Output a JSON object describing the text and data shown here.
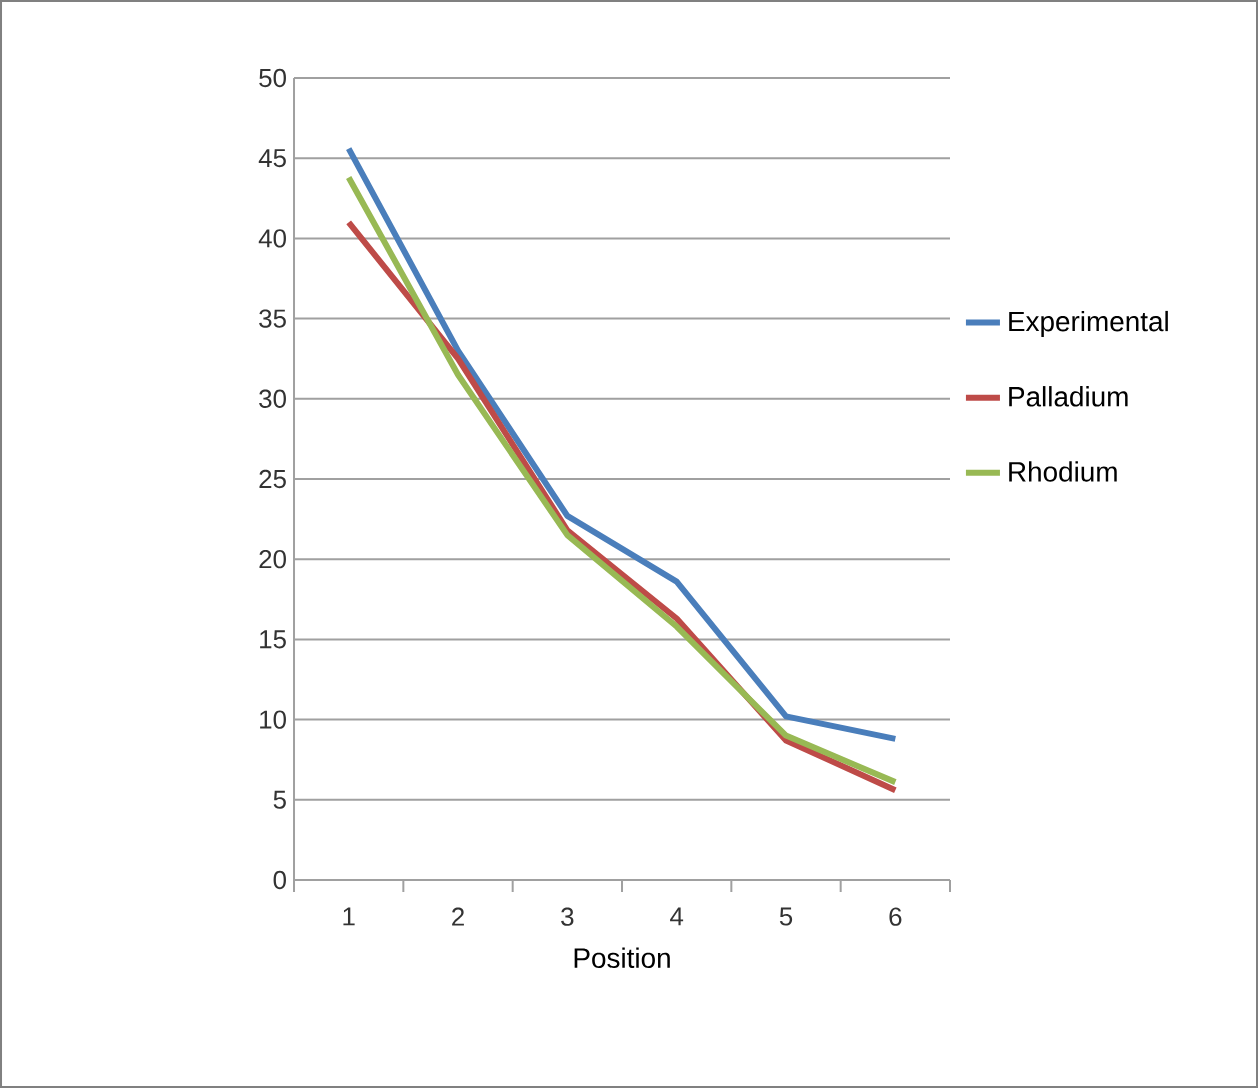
{
  "chart_data": {
    "type": "line",
    "xlabel": "Position",
    "categories": [
      "1",
      "2",
      "3",
      "4",
      "5",
      "6"
    ],
    "series": [
      {
        "name": "Experimental",
        "color": "#4a7ebb",
        "values": [
          45.6,
          33,
          22.7,
          18.6,
          10.2,
          8.8
        ]
      },
      {
        "name": "Palladium",
        "color": "#be4b48",
        "values": [
          41,
          32.5,
          21.8,
          16.3,
          8.7,
          5.6
        ]
      },
      {
        "name": "Rhodium",
        "color": "#98b954",
        "values": [
          43.8,
          31.5,
          21.5,
          15.8,
          9.0,
          6.1
        ]
      }
    ],
    "ylim": [
      0,
      50
    ],
    "yticks": [
      0,
      5,
      10,
      15,
      20,
      25,
      30,
      35,
      40,
      45,
      50
    ],
    "grid": "y",
    "legend": "right",
    "marker": "none",
    "line_style": "solid"
  }
}
